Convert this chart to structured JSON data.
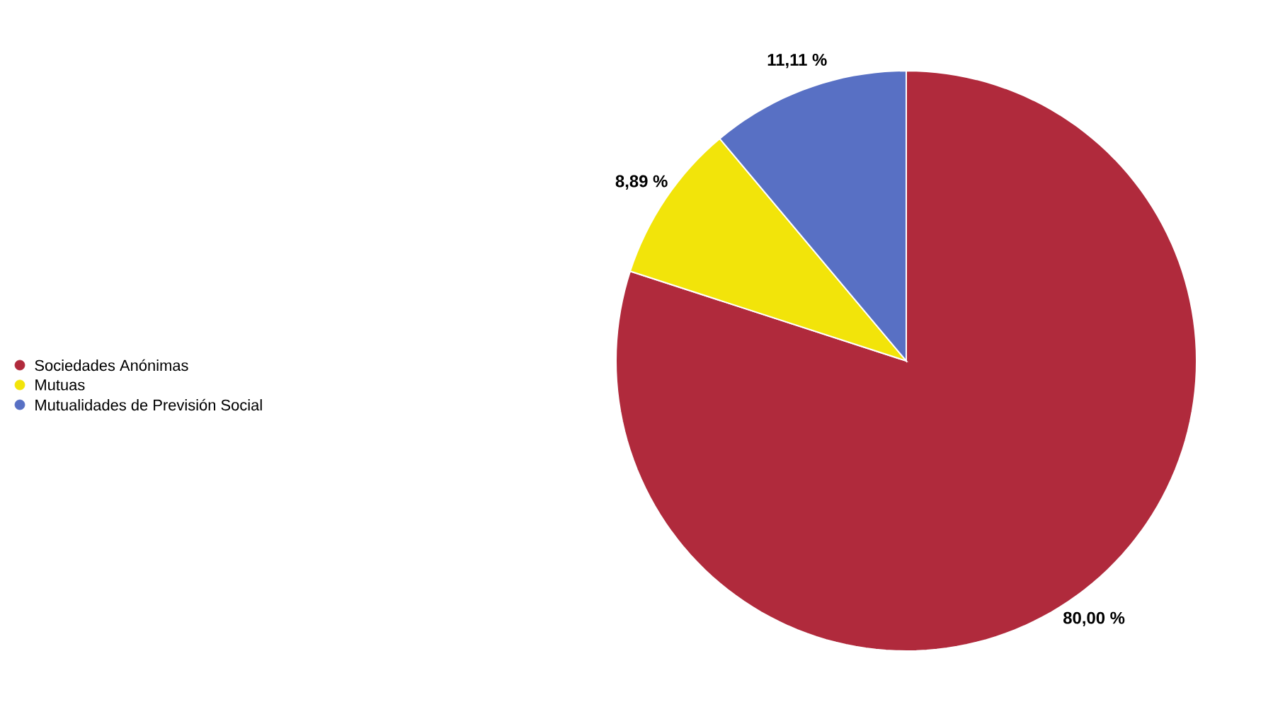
{
  "chart_data": {
    "type": "pie",
    "categories": [
      "Sociedades Anónimas",
      "Mutuas",
      "Mutualidades de Previsión Social"
    ],
    "values": [
      80,
      8.89,
      11.11
    ],
    "value_labels": [
      "80,00 %",
      "8,89 %",
      "11,11 %"
    ],
    "colors": [
      "#b02a3c",
      "#f2e40a",
      "#5870c4"
    ],
    "legend": "left"
  }
}
